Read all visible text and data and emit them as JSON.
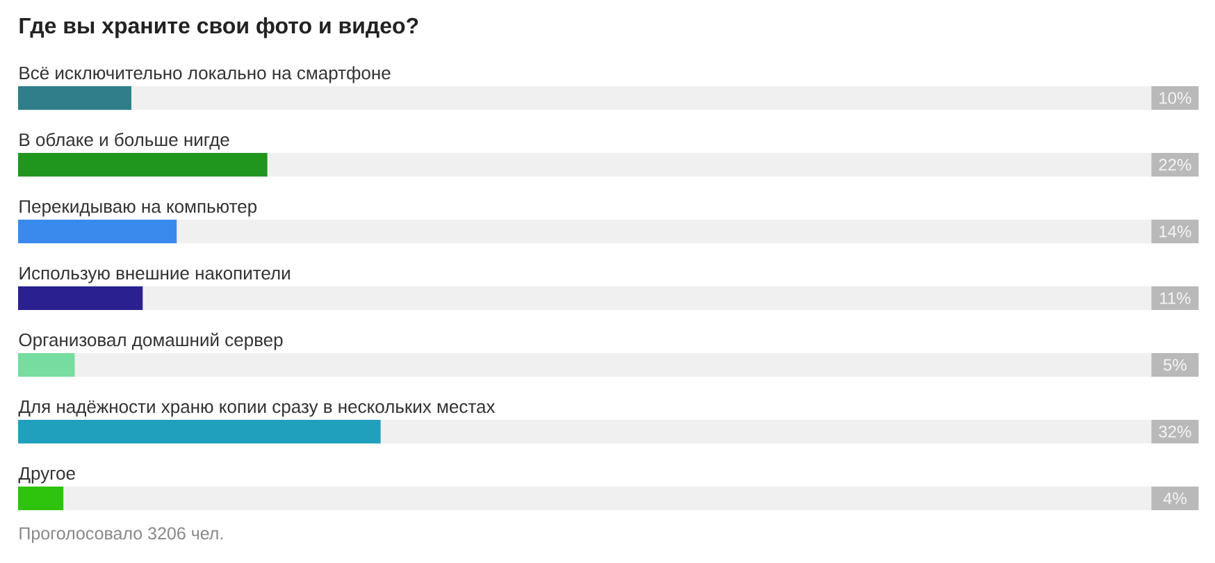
{
  "chart_data": {
    "type": "bar",
    "orientation": "horizontal",
    "title": "Где вы храните свои фото и видео?",
    "categories": [
      "Всё исключительно локально на смартфоне",
      "В облаке и больше нигде",
      "Перекидываю на компьютер",
      "Использую внешние накопители",
      "Организовал домашний сервер",
      "Для надёжности храню копии сразу в нескольких местах",
      "Другое"
    ],
    "values": [
      10,
      22,
      14,
      11,
      5,
      32,
      4
    ],
    "colors": [
      "#2e7f8a",
      "#20961f",
      "#3a8aee",
      "#2a2090",
      "#77dc9f",
      "#21a0bd",
      "#2ec30d"
    ],
    "value_labels": [
      "10%",
      "22%",
      "14%",
      "11%",
      "5%",
      "32%",
      "4%"
    ],
    "xlim": [
      0,
      100
    ],
    "annotations": [
      "Проголосовало 3206 чел."
    ]
  }
}
